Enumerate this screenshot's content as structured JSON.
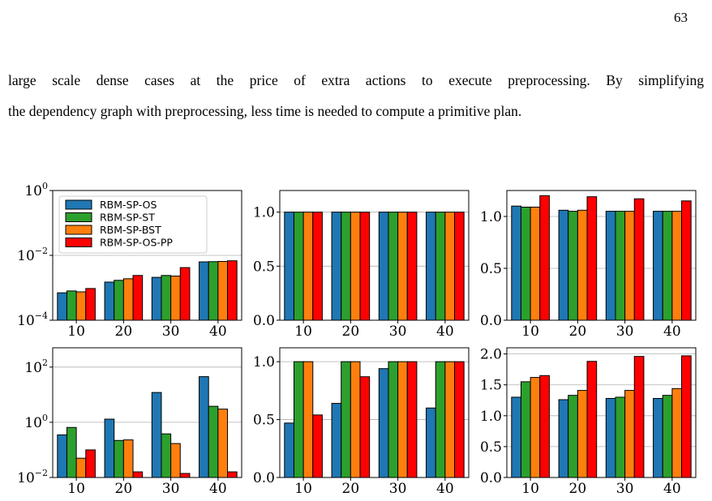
{
  "page_number": "63",
  "body_text": {
    "line1": "large scale dense cases at the price of extra actions to execute preprocessing. By simplifying",
    "line2": "the dependency graph with preprocessing, less time is needed to compute a primitive plan."
  },
  "colors": {
    "RBM-SP-OS": "#1f77b4",
    "RBM-SP-ST": "#2ca02c",
    "RBM-SP-BST": "#ff7f0e",
    "RBM-SP-OS-PP": "#ff0000"
  },
  "chart_data": [
    {
      "type": "bar",
      "categories": [
        "10",
        "20",
        "30",
        "40"
      ],
      "yscale": "log",
      "ylim": [
        0.0001,
        1
      ],
      "yticks": [
        {
          "value": 0.0001,
          "base": "10",
          "exp": "−4"
        },
        {
          "value": 0.01,
          "base": "10",
          "exp": "−2"
        },
        {
          "value": 1,
          "base": "10",
          "exp": "0"
        }
      ],
      "grid": "y",
      "legend": {
        "placement": "top-left",
        "entries": [
          "RBM-SP-OS",
          "RBM-SP-ST",
          "RBM-SP-BST",
          "RBM-SP-OS-PP"
        ]
      },
      "series": [
        {
          "name": "RBM-SP-OS",
          "values": [
            0.0007,
            0.0015,
            0.0021,
            0.0063
          ]
        },
        {
          "name": "RBM-SP-ST",
          "values": [
            0.0008,
            0.0017,
            0.0024,
            0.0064
          ]
        },
        {
          "name": "RBM-SP-BST",
          "values": [
            0.00075,
            0.0019,
            0.0023,
            0.0065
          ]
        },
        {
          "name": "RBM-SP-OS-PP",
          "values": [
            0.00095,
            0.0024,
            0.0042,
            0.0068
          ]
        }
      ]
    },
    {
      "type": "bar",
      "categories": [
        "10",
        "20",
        "30",
        "40"
      ],
      "ylim": [
        0,
        1.2
      ],
      "yticks": [
        {
          "value": 0,
          "label": "0.0"
        },
        {
          "value": 0.5,
          "label": "0.5"
        },
        {
          "value": 1,
          "label": "1.0"
        }
      ],
      "grid": "y",
      "series": [
        {
          "name": "RBM-SP-OS",
          "values": [
            1.0,
            1.0,
            1.0,
            1.0
          ]
        },
        {
          "name": "RBM-SP-ST",
          "values": [
            1.0,
            1.0,
            1.0,
            1.0
          ]
        },
        {
          "name": "RBM-SP-BST",
          "values": [
            1.0,
            1.0,
            1.0,
            1.0
          ]
        },
        {
          "name": "RBM-SP-OS-PP",
          "values": [
            1.0,
            1.0,
            1.0,
            1.0
          ]
        }
      ]
    },
    {
      "type": "bar",
      "categories": [
        "10",
        "20",
        "30",
        "40"
      ],
      "ylim": [
        0,
        1.25
      ],
      "yticks": [
        {
          "value": 0,
          "label": "0.0"
        },
        {
          "value": 0.5,
          "label": "0.5"
        },
        {
          "value": 1,
          "label": "1.0"
        }
      ],
      "grid": "y",
      "series": [
        {
          "name": "RBM-SP-OS",
          "values": [
            1.1,
            1.06,
            1.05,
            1.05
          ]
        },
        {
          "name": "RBM-SP-ST",
          "values": [
            1.09,
            1.05,
            1.05,
            1.05
          ]
        },
        {
          "name": "RBM-SP-BST",
          "values": [
            1.09,
            1.06,
            1.05,
            1.05
          ]
        },
        {
          "name": "RBM-SP-OS-PP",
          "values": [
            1.2,
            1.19,
            1.17,
            1.15
          ]
        }
      ]
    },
    {
      "type": "bar",
      "categories": [
        "10",
        "20",
        "30",
        "40"
      ],
      "yscale": "log",
      "ylim": [
        0.01,
        500
      ],
      "yticks": [
        {
          "value": 0.01,
          "base": "10",
          "exp": "−2"
        },
        {
          "value": 1,
          "base": "10",
          "exp": "0"
        },
        {
          "value": 100,
          "base": "10",
          "exp": "2"
        }
      ],
      "grid": "y",
      "series": [
        {
          "name": "RBM-SP-OS",
          "values": [
            0.35,
            1.3,
            12,
            45
          ]
        },
        {
          "name": "RBM-SP-ST",
          "values": [
            0.65,
            0.22,
            0.38,
            3.8
          ]
        },
        {
          "name": "RBM-SP-BST",
          "values": [
            0.05,
            0.23,
            0.17,
            3.0
          ]
        },
        {
          "name": "RBM-SP-OS-PP",
          "values": [
            0.1,
            0.016,
            0.014,
            0.016
          ]
        }
      ]
    },
    {
      "type": "bar",
      "categories": [
        "10",
        "20",
        "30",
        "40"
      ],
      "ylim": [
        0,
        1.12
      ],
      "yticks": [
        {
          "value": 0,
          "label": "0.0"
        },
        {
          "value": 0.5,
          "label": "0.5"
        },
        {
          "value": 1,
          "label": "1.0"
        }
      ],
      "grid": "y",
      "series": [
        {
          "name": "RBM-SP-OS",
          "values": [
            0.47,
            0.64,
            0.94,
            0.6
          ]
        },
        {
          "name": "RBM-SP-ST",
          "values": [
            1.0,
            1.0,
            1.0,
            1.0
          ]
        },
        {
          "name": "RBM-SP-BST",
          "values": [
            1.0,
            1.0,
            1.0,
            1.0
          ]
        },
        {
          "name": "RBM-SP-OS-PP",
          "values": [
            0.54,
            0.87,
            1.0,
            1.0
          ]
        }
      ]
    },
    {
      "type": "bar",
      "categories": [
        "10",
        "20",
        "30",
        "40"
      ],
      "ylim": [
        0,
        2.1
      ],
      "yticks": [
        {
          "value": 0,
          "label": "0.0"
        },
        {
          "value": 0.5,
          "label": "0.5"
        },
        {
          "value": 1,
          "label": "1.0"
        },
        {
          "value": 1.5,
          "label": "1.5"
        },
        {
          "value": 2,
          "label": "2.0"
        }
      ],
      "grid": "y",
      "series": [
        {
          "name": "RBM-SP-OS",
          "values": [
            1.3,
            1.26,
            1.28,
            1.28
          ]
        },
        {
          "name": "RBM-SP-ST",
          "values": [
            1.55,
            1.33,
            1.3,
            1.33
          ]
        },
        {
          "name": "RBM-SP-BST",
          "values": [
            1.62,
            1.41,
            1.41,
            1.44
          ]
        },
        {
          "name": "RBM-SP-OS-PP",
          "values": [
            1.65,
            1.88,
            1.96,
            1.97
          ]
        }
      ]
    }
  ]
}
